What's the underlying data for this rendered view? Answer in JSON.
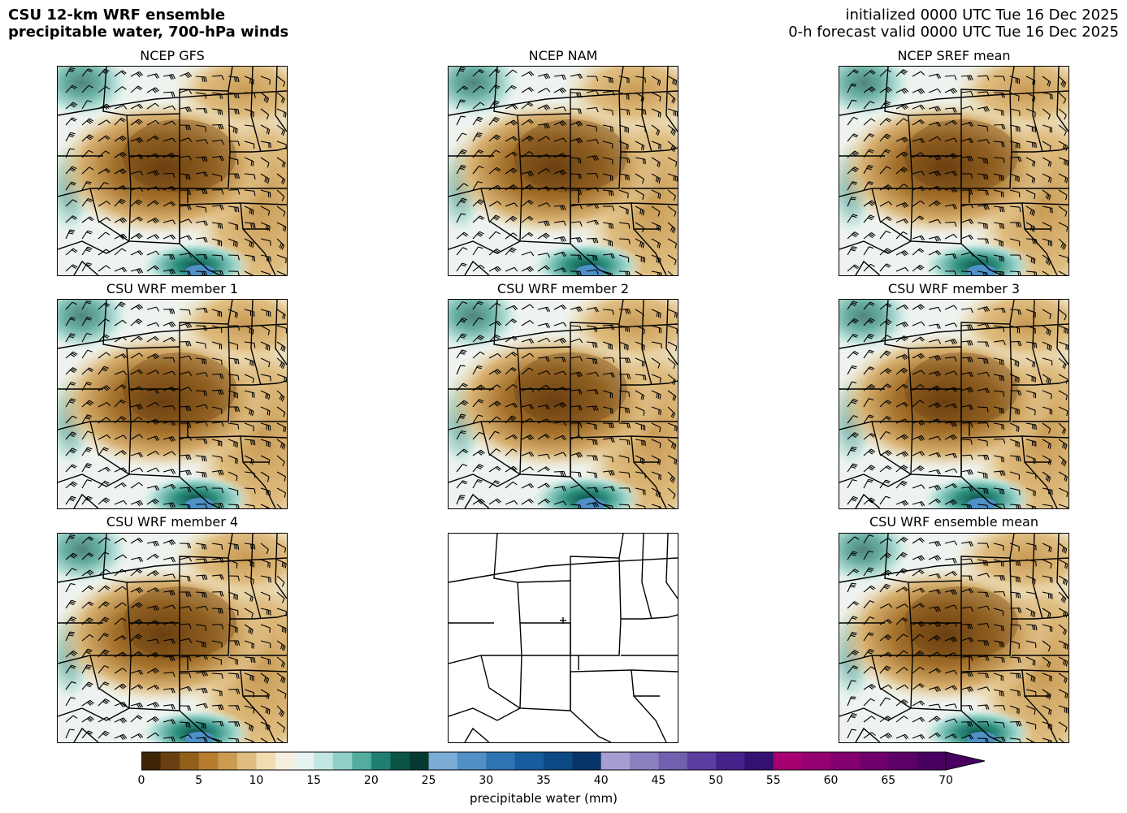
{
  "header": {
    "title_line1": "CSU 12-km WRF ensemble",
    "title_line2": "precipitable water, 700-hPa winds",
    "init_line": "initialized 0000 UTC Tue 16 Dec 2025",
    "valid_line": "0-h forecast valid 0000 UTC Tue 16 Dec 2025"
  },
  "panels": [
    {
      "title": "NCEP GFS",
      "has_data": true
    },
    {
      "title": "NCEP NAM",
      "has_data": true
    },
    {
      "title": "NCEP SREF mean",
      "has_data": true
    },
    {
      "title": "CSU WRF member 1",
      "has_data": true
    },
    {
      "title": "CSU WRF member 2",
      "has_data": true
    },
    {
      "title": "CSU WRF member 3",
      "has_data": true
    },
    {
      "title": "CSU WRF member 4",
      "has_data": true
    },
    {
      "title": "",
      "has_data": false
    },
    {
      "title": "CSU WRF ensemble mean",
      "has_data": true
    }
  ],
  "colorbar": {
    "label": "precipitable water (mm)",
    "ticks": [
      "0",
      "5",
      "10",
      "15",
      "20",
      "25",
      "30",
      "35",
      "40",
      "45",
      "50",
      "55",
      "60",
      "65",
      "70"
    ],
    "min": 0,
    "max": 70,
    "extend": "max",
    "segments": [
      {
        "from": 0,
        "to": 25,
        "colors": [
          "#3d2506",
          "#6b4010",
          "#93601c",
          "#b47d2f",
          "#cc9b52",
          "#dfbd80",
          "#efdcb0",
          "#f6efe0",
          "#e6f3f1",
          "#c2e6e1",
          "#8fd0c6",
          "#52ad9f",
          "#1f7f70",
          "#0b5546",
          "#063a30"
        ]
      },
      {
        "from": 25,
        "to": 40,
        "colors": [
          "#7aacd6",
          "#4f90c6",
          "#2e73b2",
          "#175c9c",
          "#0c4a85",
          "#08356a"
        ]
      },
      {
        "from": 40,
        "to": 55,
        "colors": [
          "#a69ed0",
          "#8b7fc0",
          "#735fb0",
          "#5a3ea0",
          "#44228a",
          "#341070"
        ]
      },
      {
        "from": 55,
        "to": 70,
        "colors": [
          "#a70070",
          "#950070",
          "#83006f",
          "#70006c",
          "#5d0068",
          "#4a0063"
        ]
      }
    ]
  }
}
